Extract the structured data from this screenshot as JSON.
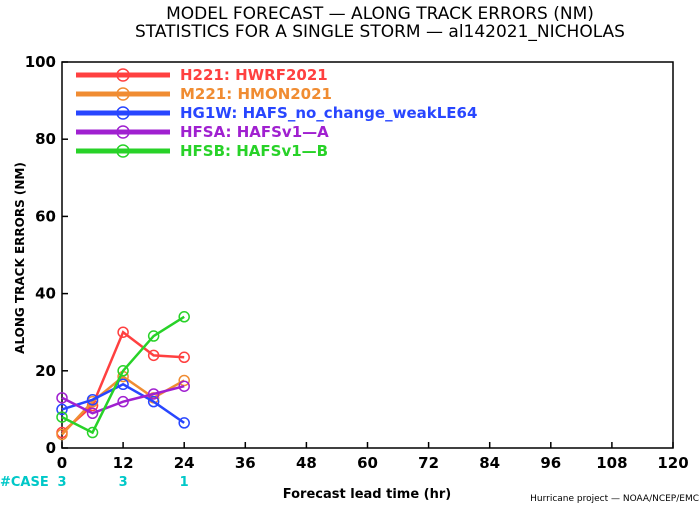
{
  "title_line1": "MODEL FORECAST — ALONG TRACK ERRORS (NM)",
  "title_line2": "STATISTICS FOR A SINGLE STORM — al142021_NICHOLAS",
  "credit": "Hurricane project — NOAA/NCEP/EMC",
  "case_label": "#CASE",
  "cases": [
    {
      "x": 0,
      "count": "3"
    },
    {
      "x": 12,
      "count": "3"
    },
    {
      "x": 24,
      "count": "1"
    }
  ],
  "chart_data": {
    "type": "line",
    "title": "MODEL FORECAST — ALONG TRACK ERRORS (NM)",
    "subtitle": "STATISTICS FOR A SINGLE STORM — al142021_NICHOLAS",
    "xlabel": "Forecast lead time (hr)",
    "ylabel": "ALONG TRACK ERRORS (NM)",
    "xlim": [
      0,
      120
    ],
    "ylim": [
      0,
      100
    ],
    "xticks": [
      "0",
      "12",
      "24",
      "36",
      "48",
      "60",
      "72",
      "84",
      "96",
      "108",
      "120"
    ],
    "yticks": [
      "0",
      "20",
      "40",
      "60",
      "80",
      "100"
    ],
    "grid": false,
    "legend_position": "top-left",
    "series": [
      {
        "name": "H221: HWRF2021",
        "color": "#ff4040",
        "x": [
          0,
          6,
          12,
          18,
          24
        ],
        "y": [
          4,
          11,
          30,
          24,
          23.5
        ]
      },
      {
        "name": "M221: HMON2021",
        "color": "#f08c32",
        "x": [
          0,
          6,
          12,
          18,
          24
        ],
        "y": [
          3.5,
          12,
          18.5,
          13,
          17.5
        ]
      },
      {
        "name": "HG1W: HAFS_no_change_weakLE64",
        "color": "#2846ff",
        "x": [
          0,
          6,
          12,
          18,
          24
        ],
        "y": [
          10,
          12.5,
          16.5,
          12,
          6.5
        ]
      },
      {
        "name": "HFSA: HAFSv1—A",
        "color": "#a020d0",
        "x": [
          0,
          6,
          12,
          18,
          24
        ],
        "y": [
          13,
          9,
          12,
          14,
          16
        ]
      },
      {
        "name": "HFSB: HAFSv1—B",
        "color": "#28d228",
        "x": [
          0,
          6,
          12,
          18,
          24
        ],
        "y": [
          8,
          4,
          20,
          29,
          34
        ]
      }
    ]
  }
}
